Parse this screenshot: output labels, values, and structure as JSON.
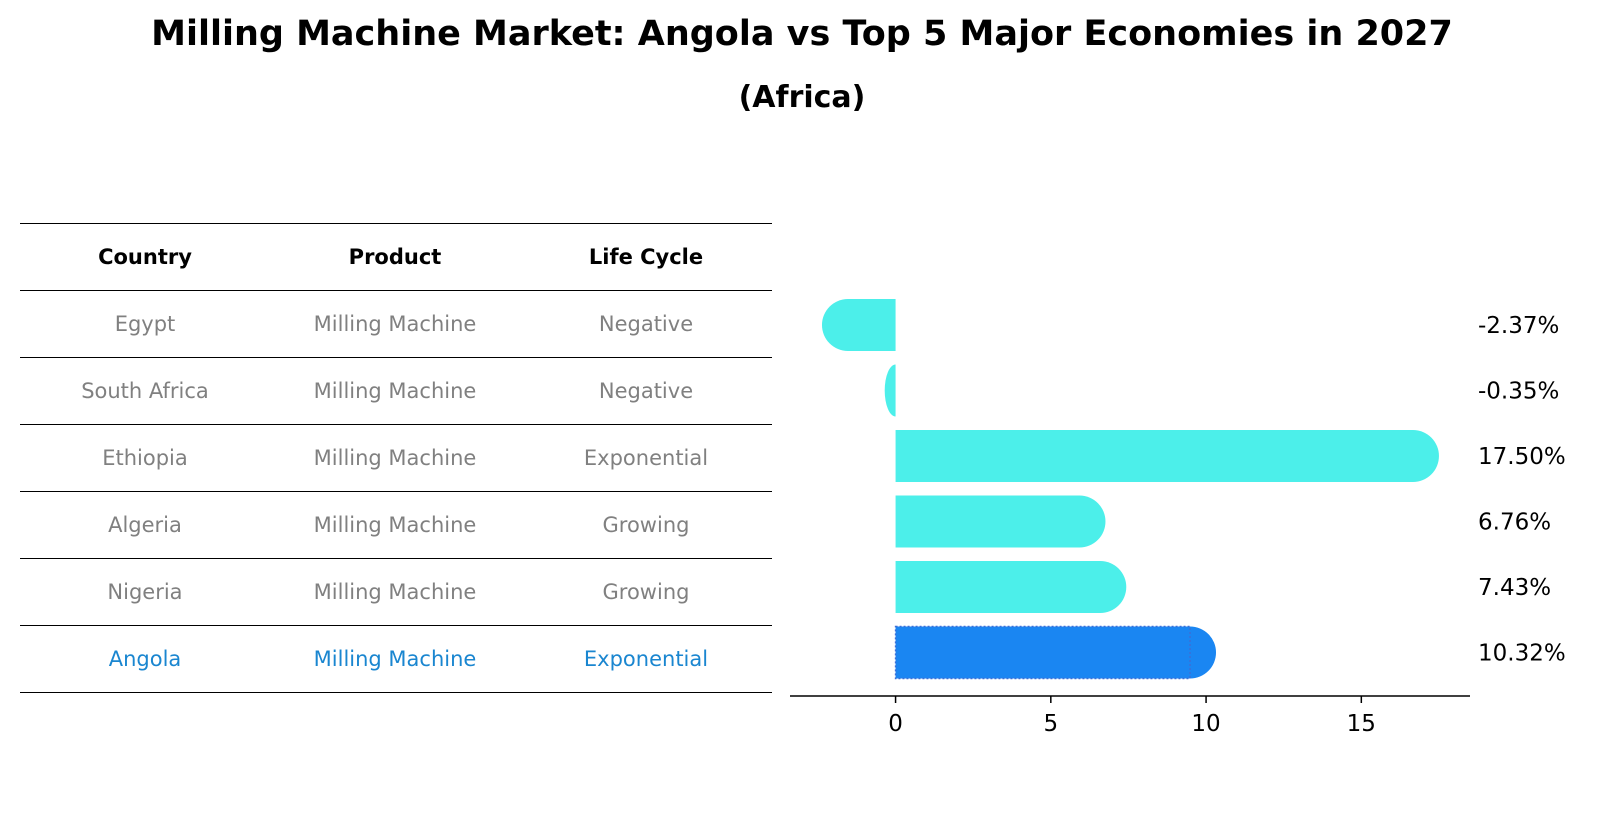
{
  "title": "Milling Machine Market: Angola vs Top 5 Major Economies in 2027",
  "subtitle": "(Africa)",
  "table": {
    "headers": [
      "Country",
      "Product",
      "Life Cycle"
    ],
    "rows": [
      {
        "country": "Egypt",
        "product": "Milling Machine",
        "life_cycle": "Negative"
      },
      {
        "country": "South Africa",
        "product": "Milling Machine",
        "life_cycle": "Negative"
      },
      {
        "country": "Ethiopia",
        "product": "Milling Machine",
        "life_cycle": "Exponential"
      },
      {
        "country": "Algeria",
        "product": "Milling Machine",
        "life_cycle": "Growing"
      },
      {
        "country": "Nigeria",
        "product": "Milling Machine",
        "life_cycle": "Growing"
      },
      {
        "country": "Angola",
        "product": "Milling Machine",
        "life_cycle": "Exponential"
      }
    ]
  },
  "chart_data": {
    "type": "bar",
    "orientation": "horizontal",
    "categories": [
      "Egypt",
      "South Africa",
      "Ethiopia",
      "Algeria",
      "Nigeria",
      "Angola"
    ],
    "values": [
      -2.37,
      -0.35,
      17.5,
      6.76,
      7.43,
      10.32
    ],
    "value_labels": [
      "-2.37%",
      "-0.35%",
      "17.50%",
      "6.76%",
      "7.43%",
      "10.32%"
    ],
    "highlight": "Angola",
    "xticks": [
      0,
      5,
      10,
      15
    ],
    "xlim": [
      -3.4,
      18.5
    ],
    "colors": {
      "default": "#4cefea",
      "highlight": "#1a86f2"
    }
  }
}
